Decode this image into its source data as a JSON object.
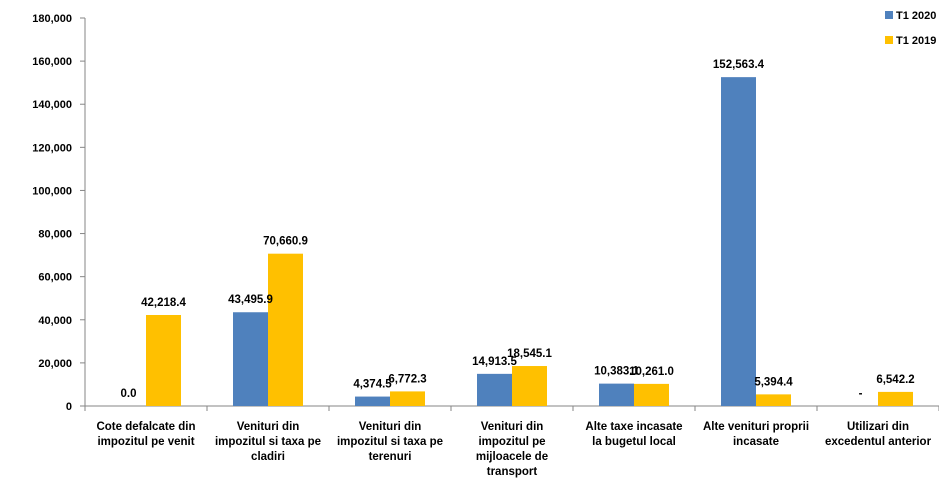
{
  "chart_data": {
    "type": "bar",
    "categories": [
      [
        "Cote defalcate din",
        "impozitul pe venit"
      ],
      [
        "Venituri din",
        "impozitul si taxa pe",
        "cladiri"
      ],
      [
        "Venituri din",
        "impozitul si taxa pe",
        "terenuri"
      ],
      [
        "Venituri din",
        "impozitul pe",
        "mijloacele de",
        "transport"
      ],
      [
        "Alte taxe incasate",
        "la bugetul local"
      ],
      [
        "Alte venituri proprii",
        "incasate"
      ],
      [
        "Utilizari din",
        "excedentul anterior"
      ]
    ],
    "series": [
      {
        "name": "T1 2020",
        "color": "#4F81BD",
        "values": [
          0.0,
          43495.9,
          4374.5,
          14913.5,
          10383.1,
          152563.4,
          0
        ],
        "labels": [
          "0.0",
          "43,495.9",
          "4,374.5",
          "14,913.5",
          "10,383.1",
          "152,563.4",
          "-"
        ]
      },
      {
        "name": "T1 2019",
        "color": "#FFC000",
        "values": [
          42218.4,
          70660.9,
          6772.3,
          18545.1,
          10261.0,
          5394.4,
          6542.2
        ],
        "labels": [
          "42,218.4",
          "70,660.9",
          "6,772.3",
          "18,545.1",
          "10,261.0",
          "5,394.4",
          "6,542.2"
        ]
      }
    ],
    "ylim": [
      0,
      180000
    ],
    "yticks": [
      0,
      20000,
      40000,
      60000,
      80000,
      100000,
      120000,
      140000,
      160000,
      180000
    ],
    "ytick_labels": [
      "0",
      "20,000",
      "40,000",
      "60,000",
      "80,000",
      "100,000",
      "120,000",
      "140,000",
      "160,000",
      "180,000"
    ],
    "legend_position": "top-right",
    "grid": false
  }
}
